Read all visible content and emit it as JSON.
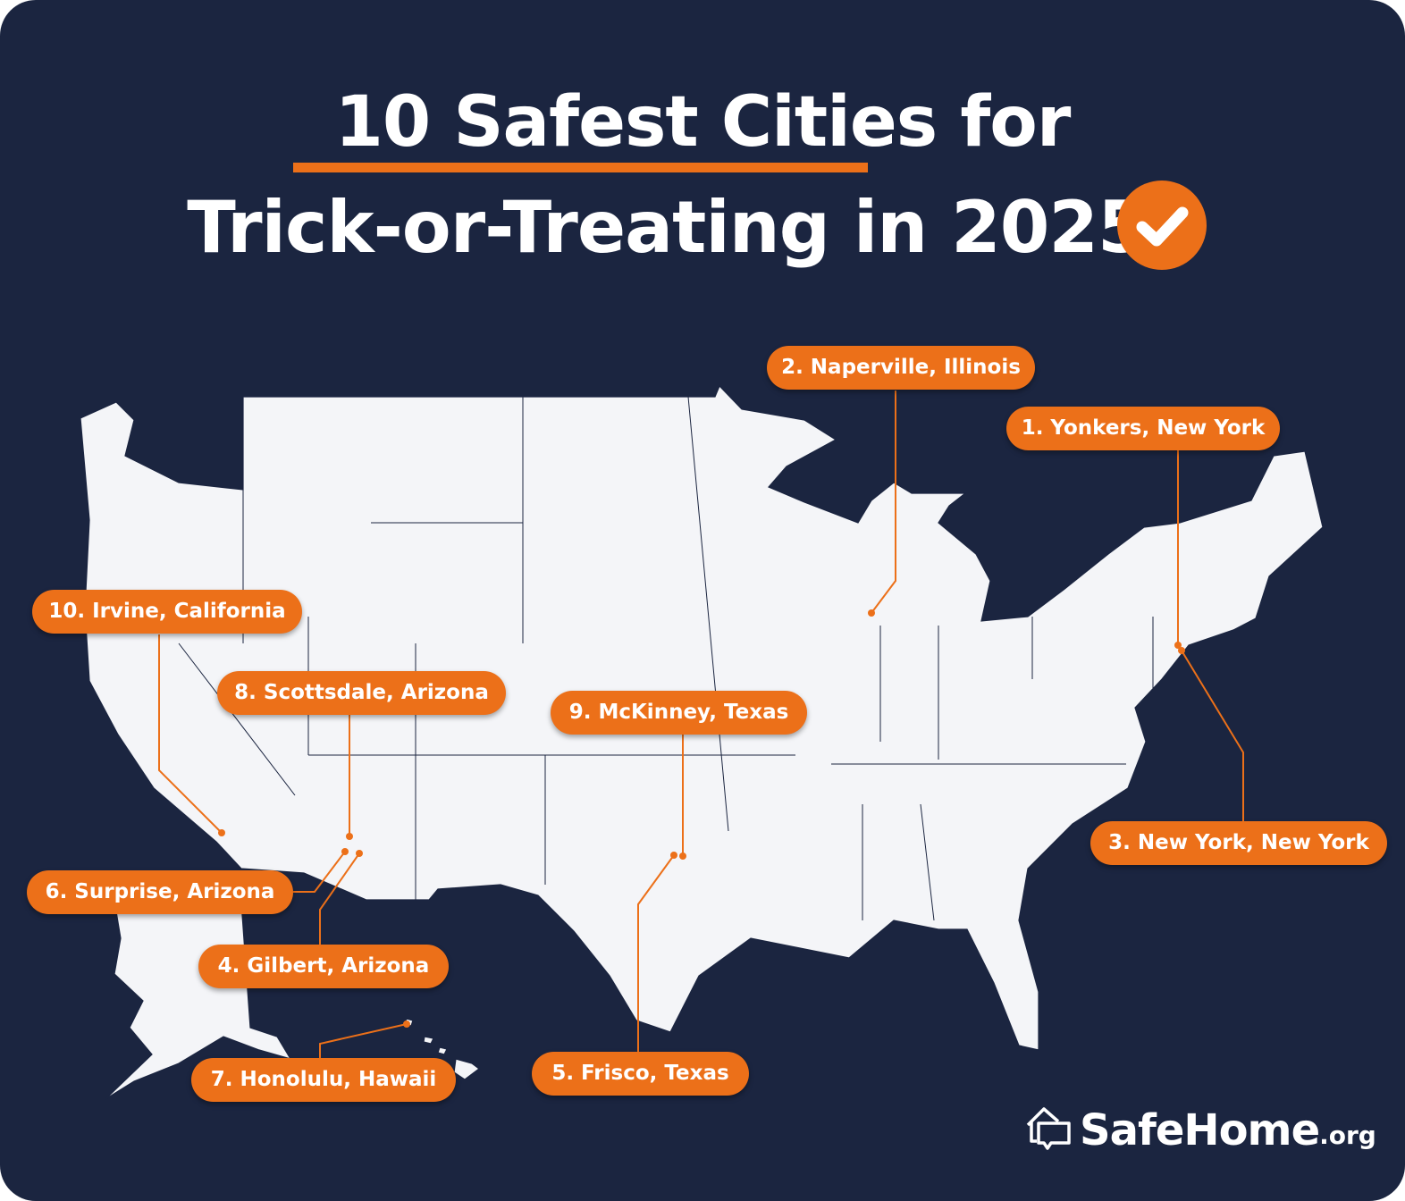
{
  "title": {
    "line1_underlined": "10 Safest Cities",
    "line1_rest": " for",
    "line2": "Trick-or-Treating in 2025",
    "badge_icon": "checkmark-icon"
  },
  "colors": {
    "background": "#1b2540",
    "accent": "#ec7019",
    "land": "#f4f5f8",
    "borders": "#1b2540"
  },
  "cities": [
    {
      "rank": 1,
      "label": "1. Yonkers, New York"
    },
    {
      "rank": 2,
      "label": "2. Naperville, Illinois"
    },
    {
      "rank": 3,
      "label": "3. New York, New York"
    },
    {
      "rank": 4,
      "label": "4. Gilbert, Arizona"
    },
    {
      "rank": 5,
      "label": "5. Frisco, Texas"
    },
    {
      "rank": 6,
      "label": "6. Surprise, Arizona"
    },
    {
      "rank": 7,
      "label": "7. Honolulu, Hawaii"
    },
    {
      "rank": 8,
      "label": "8. Scottsdale, Arizona"
    },
    {
      "rank": 9,
      "label": "9. McKinney, Texas"
    },
    {
      "rank": 10,
      "label": "10. Irvine, California"
    }
  ],
  "logo": {
    "brand": "SafeHome",
    "tld": ".org",
    "icon": "house-chat-icon"
  }
}
